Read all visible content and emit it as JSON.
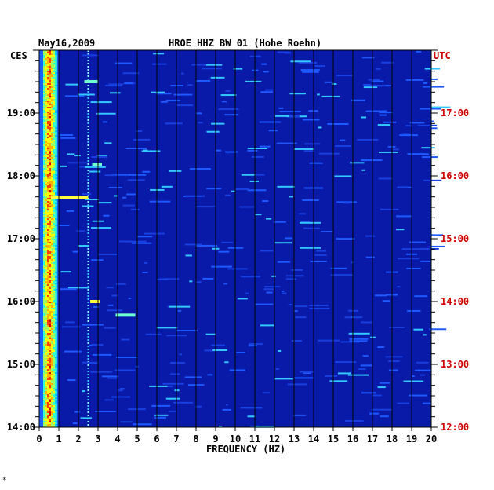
{
  "chart_data": {
    "type": "heatmap",
    "date": "May16,2009",
    "station_title": "HROE HHZ BW 01 (Hohe Roehn)",
    "left_zone": "CES",
    "right_zone": "UTC",
    "xlabel": "FREQUENCY (HZ)",
    "xlim": [
      0,
      20
    ],
    "x_ticks": [
      "0",
      "1",
      "2",
      "3",
      "4",
      "5",
      "6",
      "7",
      "8",
      "9",
      "10",
      "11",
      "12",
      "13",
      "14",
      "15",
      "16",
      "17",
      "18",
      "19",
      "20"
    ],
    "y_ticks_left": [
      "14:00",
      "15:00",
      "16:00",
      "17:00",
      "18:00",
      "19:00"
    ],
    "y_ticks_right": [
      "12:00",
      "13:00",
      "14:00",
      "15:00",
      "16:00",
      "17:00"
    ],
    "time_range_local_hours": [
      14.0,
      20.0
    ],
    "background_color": "#0a1aa8",
    "accent_right_color": "#cc0000",
    "hot_band_hz": [
      0.2,
      0.9
    ],
    "line_feature_hz": 2.5,
    "notable_events": [
      {
        "time_local": "17:39",
        "freq_range_hz": [
          0.6,
          2.5
        ],
        "intensity": "high"
      },
      {
        "time_local": "18:11",
        "freq_range_hz": [
          2.7,
          3.2
        ],
        "intensity": "medium"
      },
      {
        "time_local": "16:00",
        "freq_range_hz": [
          2.6,
          3.1
        ],
        "intensity": "high"
      },
      {
        "time_local": "15:47",
        "freq_range_hz": [
          3.9,
          4.9
        ],
        "intensity": "medium"
      },
      {
        "time_local": "19:30",
        "freq_range_hz": [
          2.3,
          3.0
        ],
        "intensity": "medium"
      }
    ]
  },
  "footer": {
    "mark": "*"
  }
}
